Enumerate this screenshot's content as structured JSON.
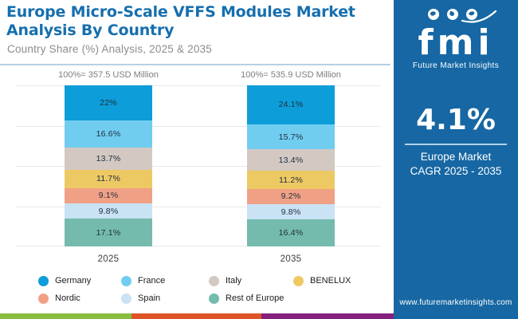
{
  "header": {
    "title": "Europe Micro-Scale VFFS Modules Market Analysis By Country",
    "subtitle": "Country Share (%) Analysis, 2025 & 2035"
  },
  "chart_data": {
    "type": "bar",
    "subtype": "100-percent-stacked-column",
    "title": "Europe Micro-Scale VFFS Modules Market Analysis By Country",
    "subtitle": "Country Share (%) Analysis, 2025 & 2035",
    "categories": [
      "2025",
      "2035"
    ],
    "bar_totals": [
      {
        "label": "100%= 357.5 USD Million",
        "value_usd_million": 357.5
      },
      {
        "label": "100%= 535.9 USD Million",
        "value_usd_million": 535.9
      }
    ],
    "series": [
      {
        "name": "Germany",
        "color": "#0d9dd8",
        "values": [
          22,
          24.1
        ],
        "labels": [
          "22%",
          "24.1%"
        ]
      },
      {
        "name": "France",
        "color": "#70cdf0",
        "values": [
          16.6,
          15.7
        ],
        "labels": [
          "16.6%",
          "15.7%"
        ]
      },
      {
        "name": "Italy",
        "color": "#d3c8c2",
        "values": [
          13.7,
          13.4
        ],
        "labels": [
          "13.7%",
          "13.4%"
        ]
      },
      {
        "name": "BENELUX",
        "color": "#edc964",
        "values": [
          11.7,
          11.2
        ],
        "labels": [
          "11.7%",
          "11.2%"
        ]
      },
      {
        "name": "Nordic",
        "color": "#f0a185",
        "values": [
          9.1,
          9.2
        ],
        "labels": [
          "9.1%",
          "9.2%"
        ]
      },
      {
        "name": "Spain",
        "color": "#c9e2f4",
        "values": [
          9.8,
          9.8
        ],
        "labels": [
          "9.8%",
          "9.8%"
        ]
      },
      {
        "name": "Rest of Europe",
        "color": "#74bbad",
        "values": [
          17.1,
          16.4
        ],
        "labels": [
          "17.1%",
          "16.4%"
        ]
      }
    ],
    "ylim": [
      0,
      100
    ],
    "grid": true,
    "legend_position": "bottom"
  },
  "sidebar": {
    "logo_text": "fmi",
    "logo_tagline": "Future Market Insights",
    "cagr_value": "4.1%",
    "cagr_line1": "Europe Market",
    "cagr_line2": "CAGR 2025 - 2035",
    "website": "www.futuremarketinsights.com",
    "background_color": "#1667a3"
  },
  "footer_stripe_colors": [
    "#88bd40",
    "#dd5426",
    "#84217e"
  ]
}
